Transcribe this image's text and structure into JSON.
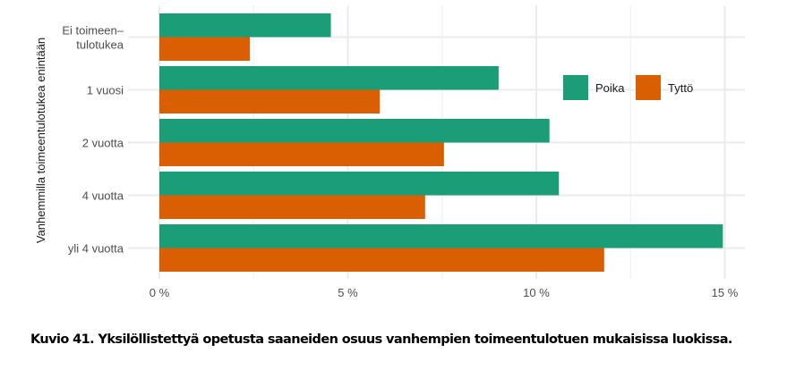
{
  "chart_data": {
    "type": "bar",
    "orientation": "horizontal",
    "title": "",
    "xlabel": "",
    "ylabel": "Vanhemmilla toimeentulotukea enintään",
    "categories": [
      "Ei toimeen–\ntulotukea",
      "1 vuosi",
      "2 vuotta",
      "4 vuotta",
      "yli 4 vuotta"
    ],
    "category_lines": [
      [
        "Ei toimeen–",
        "tulotukea"
      ],
      [
        "1 vuosi"
      ],
      [
        "2 vuotta"
      ],
      [
        "4 vuotta"
      ],
      [
        "yli 4 vuotta"
      ]
    ],
    "series": [
      {
        "name": "Poika",
        "color": "#1b9e77",
        "values": [
          4.55,
          9.0,
          10.35,
          10.6,
          14.95
        ]
      },
      {
        "name": "Tyttö",
        "color": "#d95f02",
        "values": [
          2.4,
          5.85,
          7.55,
          7.05,
          11.8
        ]
      }
    ],
    "xlim": [
      0,
      15.5
    ],
    "xticks": [
      0,
      5,
      10,
      15
    ],
    "xtick_labels": [
      "0 %",
      "5 %",
      "10 %",
      "15 %"
    ],
    "grid": true,
    "legend_position": "inside-top-right",
    "unit": "%"
  },
  "legend": {
    "items": [
      {
        "label": "Poika",
        "color": "#1b9e77"
      },
      {
        "label": "Tyttö",
        "color": "#d95f02"
      }
    ]
  },
  "caption": "Kuvio 41. Yksilöllistettyä opetusta saaneiden osuus vanhempien toimeentulotuen mukaisissa luokissa."
}
